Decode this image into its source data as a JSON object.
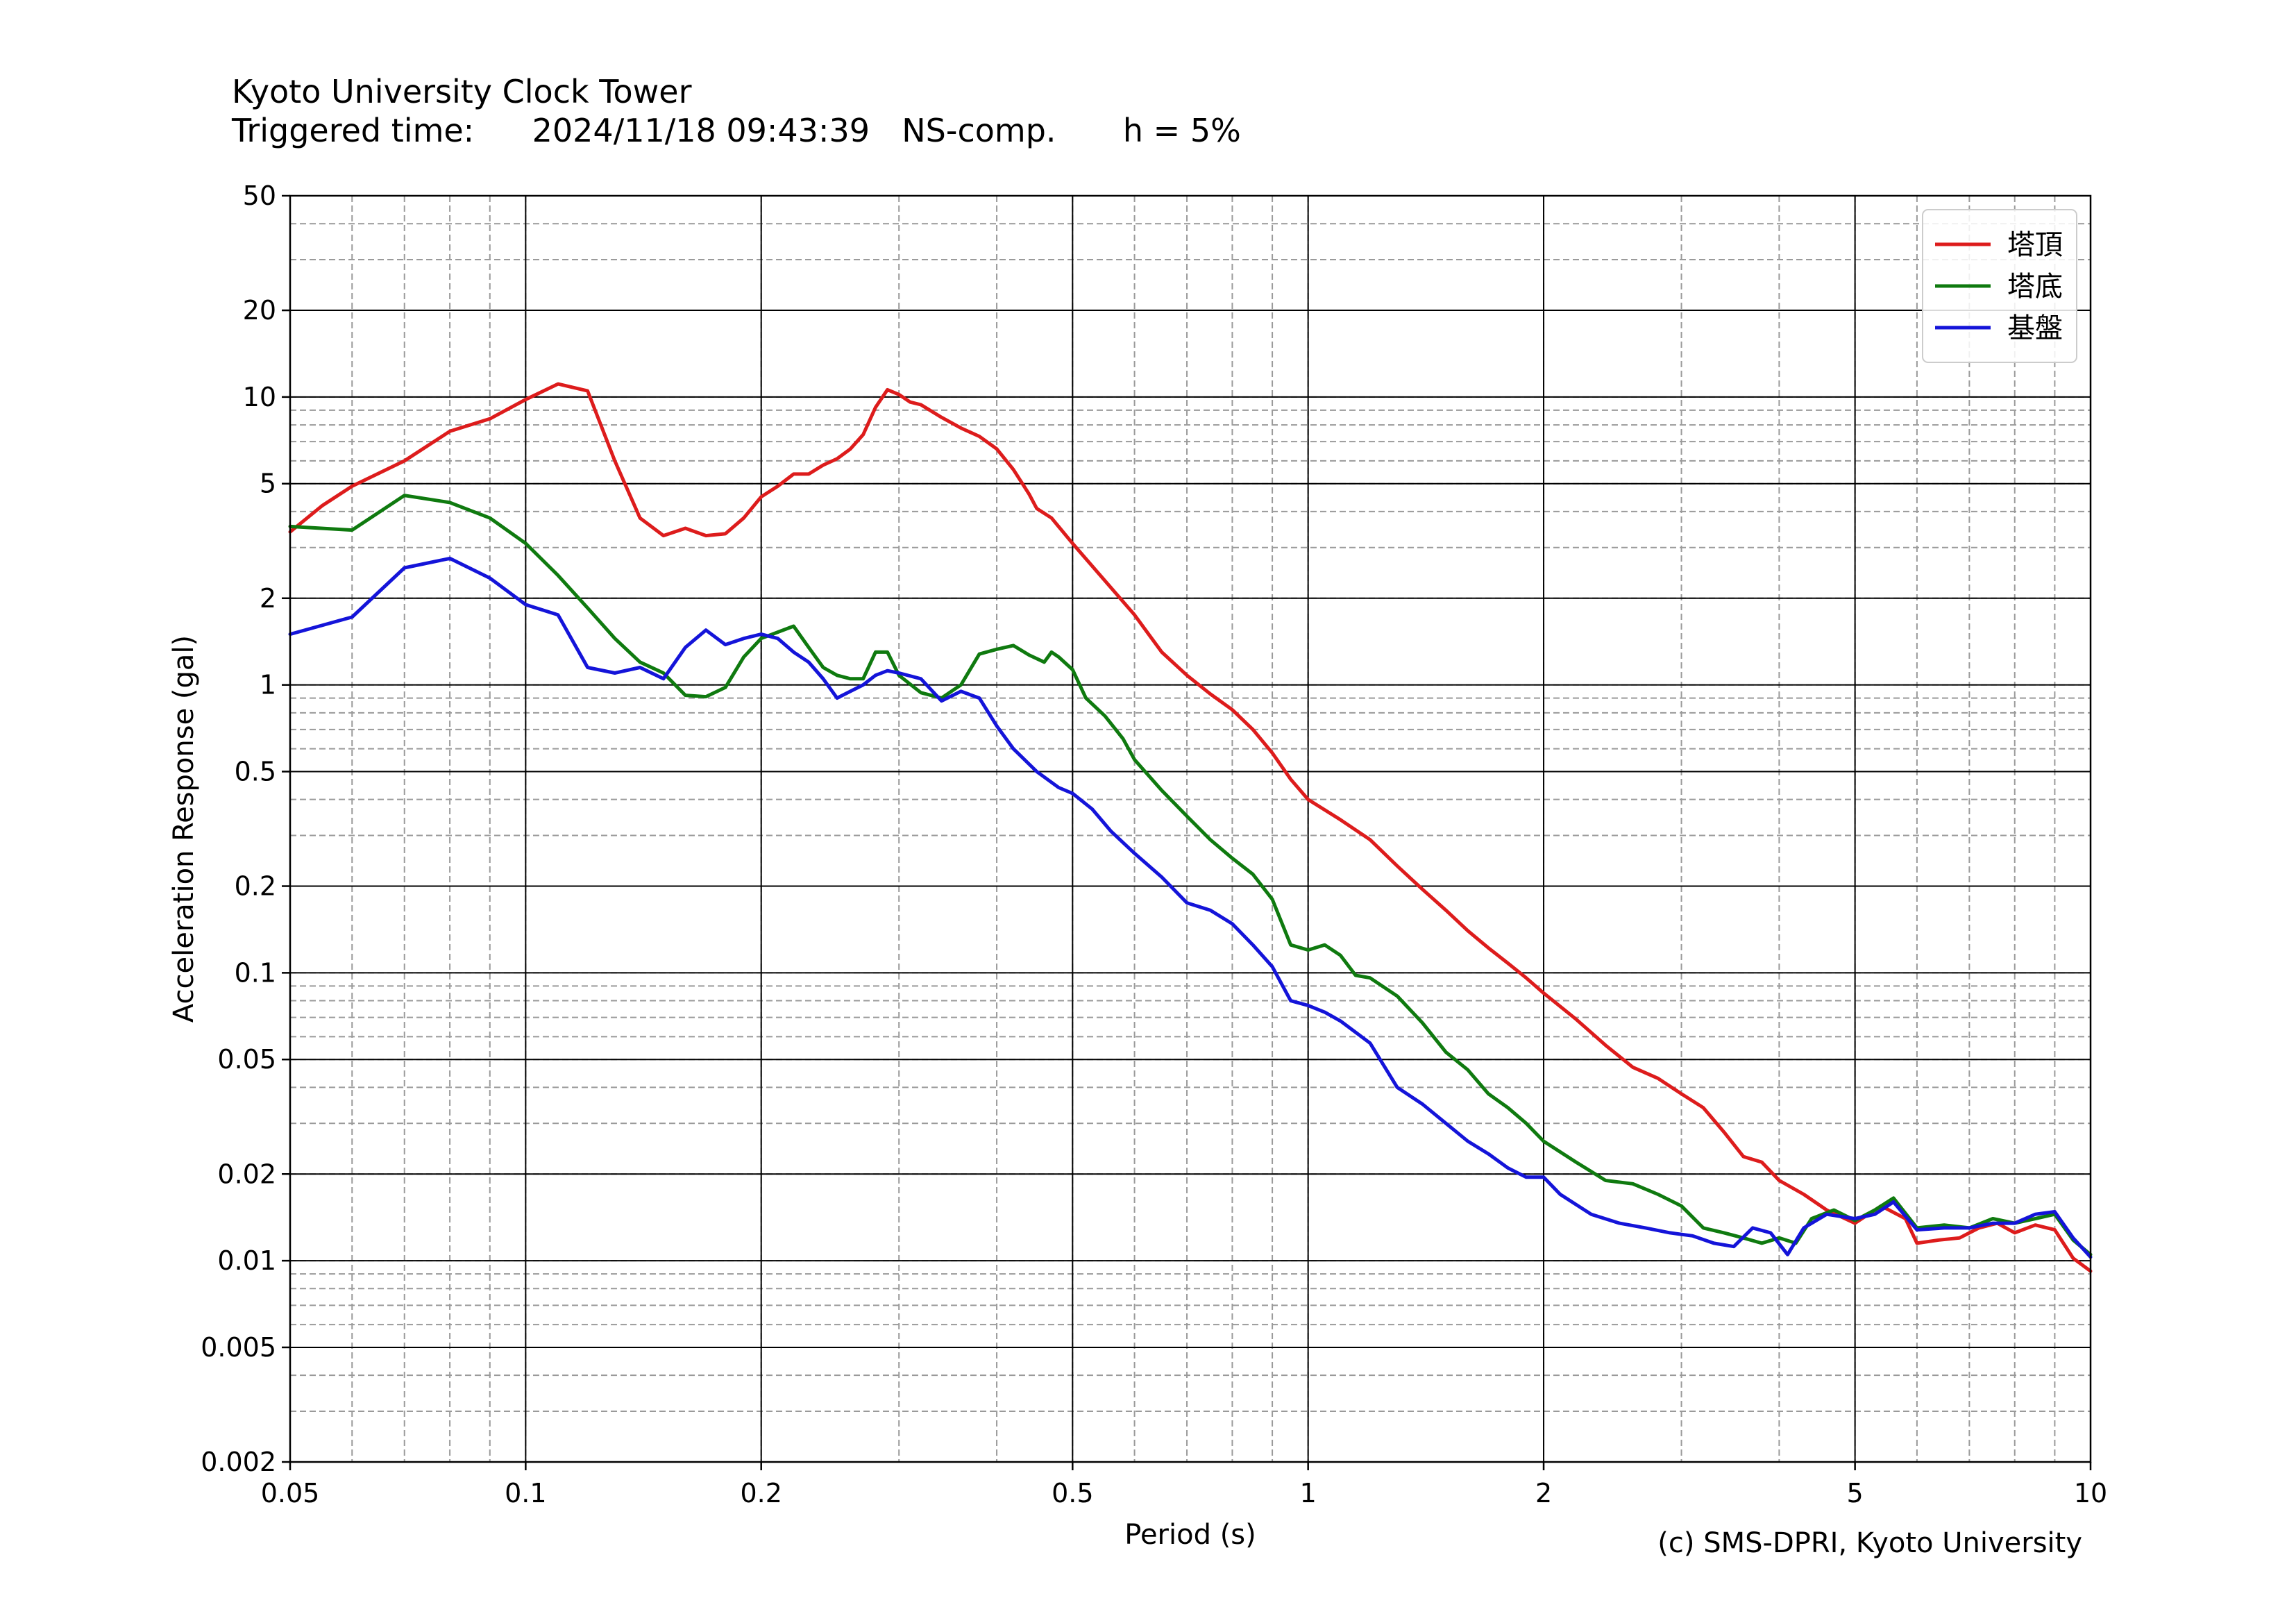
{
  "header": {
    "station": "Kyoto University Clock Tower",
    "triggered_label": "Triggered time:",
    "triggered_time": "2024/11/18 09:43:39",
    "component": "NS-comp.",
    "damping": "h = 5%"
  },
  "copyright": "(c) SMS-DPRI, Kyoto University",
  "chart_data": {
    "type": "line",
    "xlabel": "Period (s)",
    "ylabel": "Acceleration Response (gal)",
    "xscale": "log",
    "yscale": "log",
    "xlim": [
      0.05,
      10
    ],
    "ylim": [
      0.002,
      50
    ],
    "xticks": [
      0.05,
      0.1,
      0.2,
      0.5,
      1,
      2,
      5,
      10
    ],
    "xtick_labels": [
      "0.05",
      "0.1",
      "0.2",
      "0.5",
      "1",
      "2",
      "5",
      "10"
    ],
    "yticks": [
      0.002,
      0.005,
      0.01,
      0.02,
      0.05,
      0.1,
      0.2,
      0.5,
      1,
      2,
      5,
      10,
      20,
      50
    ],
    "ytick_labels": [
      "0.002",
      "0.005",
      "0.01",
      "0.02",
      "0.05",
      "0.1",
      "0.2",
      "0.5",
      "1",
      "2",
      "5",
      "10",
      "20",
      "50"
    ],
    "grid": "major solid, minor dashed",
    "legend_position": "top-right",
    "series": [
      {
        "name": "塔頂",
        "color": "#dd1c1c",
        "points": [
          [
            0.05,
            3.4
          ],
          [
            0.055,
            4.2
          ],
          [
            0.06,
            4.9
          ],
          [
            0.07,
            6.0
          ],
          [
            0.08,
            7.6
          ],
          [
            0.09,
            8.4
          ],
          [
            0.1,
            9.8
          ],
          [
            0.11,
            11.1
          ],
          [
            0.12,
            10.5
          ],
          [
            0.13,
            6.0
          ],
          [
            0.14,
            3.8
          ],
          [
            0.15,
            3.3
          ],
          [
            0.16,
            3.5
          ],
          [
            0.17,
            3.3
          ],
          [
            0.18,
            3.35
          ],
          [
            0.19,
            3.8
          ],
          [
            0.2,
            4.5
          ],
          [
            0.21,
            4.9
          ],
          [
            0.22,
            5.4
          ],
          [
            0.23,
            5.4
          ],
          [
            0.24,
            5.8
          ],
          [
            0.25,
            6.1
          ],
          [
            0.26,
            6.6
          ],
          [
            0.27,
            7.4
          ],
          [
            0.28,
            9.2
          ],
          [
            0.29,
            10.6
          ],
          [
            0.3,
            10.2
          ],
          [
            0.31,
            9.6
          ],
          [
            0.32,
            9.4
          ],
          [
            0.34,
            8.5
          ],
          [
            0.36,
            7.8
          ],
          [
            0.38,
            7.3
          ],
          [
            0.4,
            6.6
          ],
          [
            0.42,
            5.6
          ],
          [
            0.44,
            4.6
          ],
          [
            0.45,
            4.1
          ],
          [
            0.47,
            3.8
          ],
          [
            0.5,
            3.1
          ],
          [
            0.55,
            2.3
          ],
          [
            0.6,
            1.75
          ],
          [
            0.65,
            1.3
          ],
          [
            0.7,
            1.08
          ],
          [
            0.75,
            0.93
          ],
          [
            0.8,
            0.82
          ],
          [
            0.85,
            0.7
          ],
          [
            0.9,
            0.58
          ],
          [
            0.95,
            0.47
          ],
          [
            1.0,
            0.4
          ],
          [
            1.1,
            0.34
          ],
          [
            1.2,
            0.29
          ],
          [
            1.3,
            0.235
          ],
          [
            1.4,
            0.195
          ],
          [
            1.5,
            0.165
          ],
          [
            1.6,
            0.14
          ],
          [
            1.7,
            0.122
          ],
          [
            1.8,
            0.108
          ],
          [
            1.9,
            0.096
          ],
          [
            2.0,
            0.085
          ],
          [
            2.2,
            0.069
          ],
          [
            2.4,
            0.056
          ],
          [
            2.6,
            0.047
          ],
          [
            2.8,
            0.043
          ],
          [
            3.0,
            0.038
          ],
          [
            3.2,
            0.034
          ],
          [
            3.4,
            0.028
          ],
          [
            3.6,
            0.023
          ],
          [
            3.8,
            0.022
          ],
          [
            4.0,
            0.019
          ],
          [
            4.3,
            0.017
          ],
          [
            4.6,
            0.015
          ],
          [
            5.0,
            0.0135
          ],
          [
            5.4,
            0.0155
          ],
          [
            5.8,
            0.014
          ],
          [
            6.0,
            0.0115
          ],
          [
            6.4,
            0.0118
          ],
          [
            6.8,
            0.012
          ],
          [
            7.2,
            0.013
          ],
          [
            7.6,
            0.0135
          ],
          [
            8.0,
            0.0125
          ],
          [
            8.5,
            0.0133
          ],
          [
            9.0,
            0.0128
          ],
          [
            9.5,
            0.0102
          ],
          [
            10.0,
            0.0092
          ]
        ]
      },
      {
        "name": "塔底",
        "color": "#0f7a0f",
        "points": [
          [
            0.05,
            3.55
          ],
          [
            0.06,
            3.45
          ],
          [
            0.07,
            4.55
          ],
          [
            0.08,
            4.3
          ],
          [
            0.09,
            3.8
          ],
          [
            0.1,
            3.1
          ],
          [
            0.11,
            2.4
          ],
          [
            0.12,
            1.85
          ],
          [
            0.13,
            1.45
          ],
          [
            0.14,
            1.2
          ],
          [
            0.15,
            1.1
          ],
          [
            0.16,
            0.92
          ],
          [
            0.17,
            0.91
          ],
          [
            0.18,
            0.98
          ],
          [
            0.19,
            1.25
          ],
          [
            0.2,
            1.45
          ],
          [
            0.22,
            1.6
          ],
          [
            0.23,
            1.35
          ],
          [
            0.24,
            1.15
          ],
          [
            0.25,
            1.08
          ],
          [
            0.26,
            1.05
          ],
          [
            0.27,
            1.05
          ],
          [
            0.28,
            1.3
          ],
          [
            0.29,
            1.3
          ],
          [
            0.3,
            1.08
          ],
          [
            0.32,
            0.94
          ],
          [
            0.34,
            0.9
          ],
          [
            0.36,
            1.0
          ],
          [
            0.38,
            1.28
          ],
          [
            0.4,
            1.33
          ],
          [
            0.42,
            1.37
          ],
          [
            0.44,
            1.27
          ],
          [
            0.46,
            1.2
          ],
          [
            0.47,
            1.3
          ],
          [
            0.48,
            1.25
          ],
          [
            0.5,
            1.13
          ],
          [
            0.52,
            0.9
          ],
          [
            0.55,
            0.78
          ],
          [
            0.58,
            0.65
          ],
          [
            0.6,
            0.55
          ],
          [
            0.65,
            0.43
          ],
          [
            0.7,
            0.35
          ],
          [
            0.75,
            0.29
          ],
          [
            0.8,
            0.25
          ],
          [
            0.85,
            0.22
          ],
          [
            0.9,
            0.18
          ],
          [
            0.95,
            0.125
          ],
          [
            1.0,
            0.12
          ],
          [
            1.05,
            0.125
          ],
          [
            1.1,
            0.115
          ],
          [
            1.15,
            0.098
          ],
          [
            1.2,
            0.096
          ],
          [
            1.3,
            0.083
          ],
          [
            1.4,
            0.067
          ],
          [
            1.5,
            0.053
          ],
          [
            1.6,
            0.046
          ],
          [
            1.7,
            0.038
          ],
          [
            1.8,
            0.034
          ],
          [
            1.9,
            0.03
          ],
          [
            2.0,
            0.026
          ],
          [
            2.2,
            0.022
          ],
          [
            2.4,
            0.019
          ],
          [
            2.6,
            0.0185
          ],
          [
            2.8,
            0.017
          ],
          [
            3.0,
            0.0155
          ],
          [
            3.2,
            0.013
          ],
          [
            3.4,
            0.0125
          ],
          [
            3.6,
            0.012
          ],
          [
            3.8,
            0.0115
          ],
          [
            4.0,
            0.012
          ],
          [
            4.2,
            0.0115
          ],
          [
            4.4,
            0.014
          ],
          [
            4.7,
            0.015
          ],
          [
            5.0,
            0.0138
          ],
          [
            5.3,
            0.015
          ],
          [
            5.6,
            0.0165
          ],
          [
            6.0,
            0.013
          ],
          [
            6.5,
            0.0133
          ],
          [
            7.0,
            0.013
          ],
          [
            7.5,
            0.014
          ],
          [
            8.0,
            0.0135
          ],
          [
            8.5,
            0.014
          ],
          [
            9.0,
            0.0145
          ],
          [
            9.5,
            0.0118
          ],
          [
            10.0,
            0.0105
          ]
        ]
      },
      {
        "name": "基盤",
        "color": "#1414d9",
        "points": [
          [
            0.05,
            1.5
          ],
          [
            0.06,
            1.72
          ],
          [
            0.07,
            2.55
          ],
          [
            0.08,
            2.75
          ],
          [
            0.09,
            2.35
          ],
          [
            0.1,
            1.9
          ],
          [
            0.11,
            1.75
          ],
          [
            0.12,
            1.15
          ],
          [
            0.13,
            1.1
          ],
          [
            0.14,
            1.15
          ],
          [
            0.15,
            1.05
          ],
          [
            0.16,
            1.35
          ],
          [
            0.17,
            1.55
          ],
          [
            0.18,
            1.38
          ],
          [
            0.19,
            1.45
          ],
          [
            0.2,
            1.5
          ],
          [
            0.21,
            1.45
          ],
          [
            0.22,
            1.3
          ],
          [
            0.23,
            1.2
          ],
          [
            0.24,
            1.05
          ],
          [
            0.25,
            0.9
          ],
          [
            0.26,
            0.95
          ],
          [
            0.27,
            1.0
          ],
          [
            0.28,
            1.08
          ],
          [
            0.29,
            1.12
          ],
          [
            0.3,
            1.1
          ],
          [
            0.32,
            1.05
          ],
          [
            0.34,
            0.88
          ],
          [
            0.36,
            0.95
          ],
          [
            0.38,
            0.9
          ],
          [
            0.4,
            0.72
          ],
          [
            0.42,
            0.6
          ],
          [
            0.45,
            0.5
          ],
          [
            0.48,
            0.44
          ],
          [
            0.5,
            0.42
          ],
          [
            0.53,
            0.37
          ],
          [
            0.56,
            0.31
          ],
          [
            0.6,
            0.26
          ],
          [
            0.65,
            0.215
          ],
          [
            0.7,
            0.175
          ],
          [
            0.75,
            0.165
          ],
          [
            0.8,
            0.148
          ],
          [
            0.85,
            0.125
          ],
          [
            0.9,
            0.105
          ],
          [
            0.95,
            0.08
          ],
          [
            1.0,
            0.077
          ],
          [
            1.05,
            0.073
          ],
          [
            1.1,
            0.068
          ],
          [
            1.2,
            0.057
          ],
          [
            1.3,
            0.04
          ],
          [
            1.4,
            0.035
          ],
          [
            1.5,
            0.03
          ],
          [
            1.6,
            0.026
          ],
          [
            1.7,
            0.0235
          ],
          [
            1.8,
            0.021
          ],
          [
            1.9,
            0.0195
          ],
          [
            2.0,
            0.0195
          ],
          [
            2.1,
            0.017
          ],
          [
            2.3,
            0.0145
          ],
          [
            2.5,
            0.0135
          ],
          [
            2.7,
            0.013
          ],
          [
            2.9,
            0.0125
          ],
          [
            3.1,
            0.0122
          ],
          [
            3.3,
            0.0115
          ],
          [
            3.5,
            0.0112
          ],
          [
            3.7,
            0.013
          ],
          [
            3.9,
            0.0125
          ],
          [
            4.1,
            0.0105
          ],
          [
            4.3,
            0.013
          ],
          [
            4.6,
            0.0145
          ],
          [
            5.0,
            0.014
          ],
          [
            5.3,
            0.0145
          ],
          [
            5.6,
            0.016
          ],
          [
            6.0,
            0.0128
          ],
          [
            6.5,
            0.013
          ],
          [
            7.0,
            0.013
          ],
          [
            7.5,
            0.0135
          ],
          [
            8.0,
            0.0135
          ],
          [
            8.5,
            0.0145
          ],
          [
            9.0,
            0.0148
          ],
          [
            9.5,
            0.012
          ],
          [
            10.0,
            0.0103
          ]
        ]
      }
    ]
  }
}
